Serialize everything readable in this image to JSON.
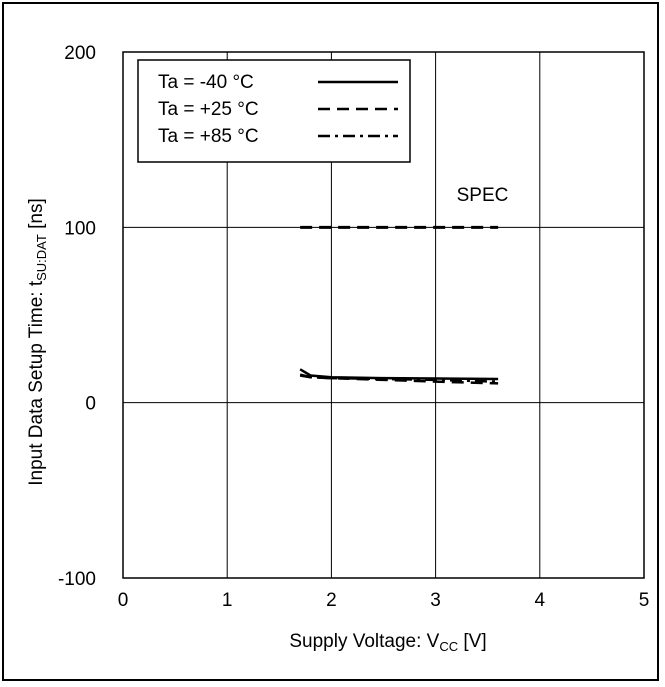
{
  "chart_data": {
    "type": "line",
    "xlabel": {
      "main": "Supply Voltage: V",
      "sub": "CC",
      "tail": " [V]"
    },
    "ylabel": {
      "main": "Input Data Setup Time: t",
      "sub": "SU:DAT",
      "tail": " [ns]"
    },
    "xlim": [
      0,
      5
    ],
    "ylim": [
      -100,
      200
    ],
    "x_ticks": [
      0,
      1,
      2,
      3,
      4,
      5
    ],
    "y_ticks": [
      -100,
      0,
      100,
      200
    ],
    "grid": true,
    "legend_position": "top-left",
    "annotations": [
      {
        "text": "SPEC",
        "x": 3.45,
        "y": 115
      }
    ],
    "series": [
      {
        "name": "Ta = -40 °C",
        "dash": "solid",
        "x": [
          1.7,
          1.8,
          2.0,
          2.5,
          3.0,
          3.6
        ],
        "y": [
          19,
          15.5,
          14.5,
          14,
          13.8,
          13.5
        ]
      },
      {
        "name": "Ta = +25 °C",
        "dash": "dashed",
        "x": [
          1.7,
          1.8,
          2.0,
          2.5,
          3.0,
          3.6
        ],
        "y": [
          16,
          14.5,
          14,
          13,
          12,
          11
        ]
      },
      {
        "name": "Ta = +85 °C",
        "dash": "dashdot",
        "x": [
          1.7,
          1.8,
          2.0,
          2.5,
          3.0,
          3.6
        ],
        "y": [
          15.5,
          14.5,
          14,
          13.5,
          13,
          12
        ]
      }
    ],
    "spec_line": {
      "x": [
        1.7,
        3.6
      ],
      "y": [
        100,
        100
      ],
      "dash": "dashed"
    }
  }
}
